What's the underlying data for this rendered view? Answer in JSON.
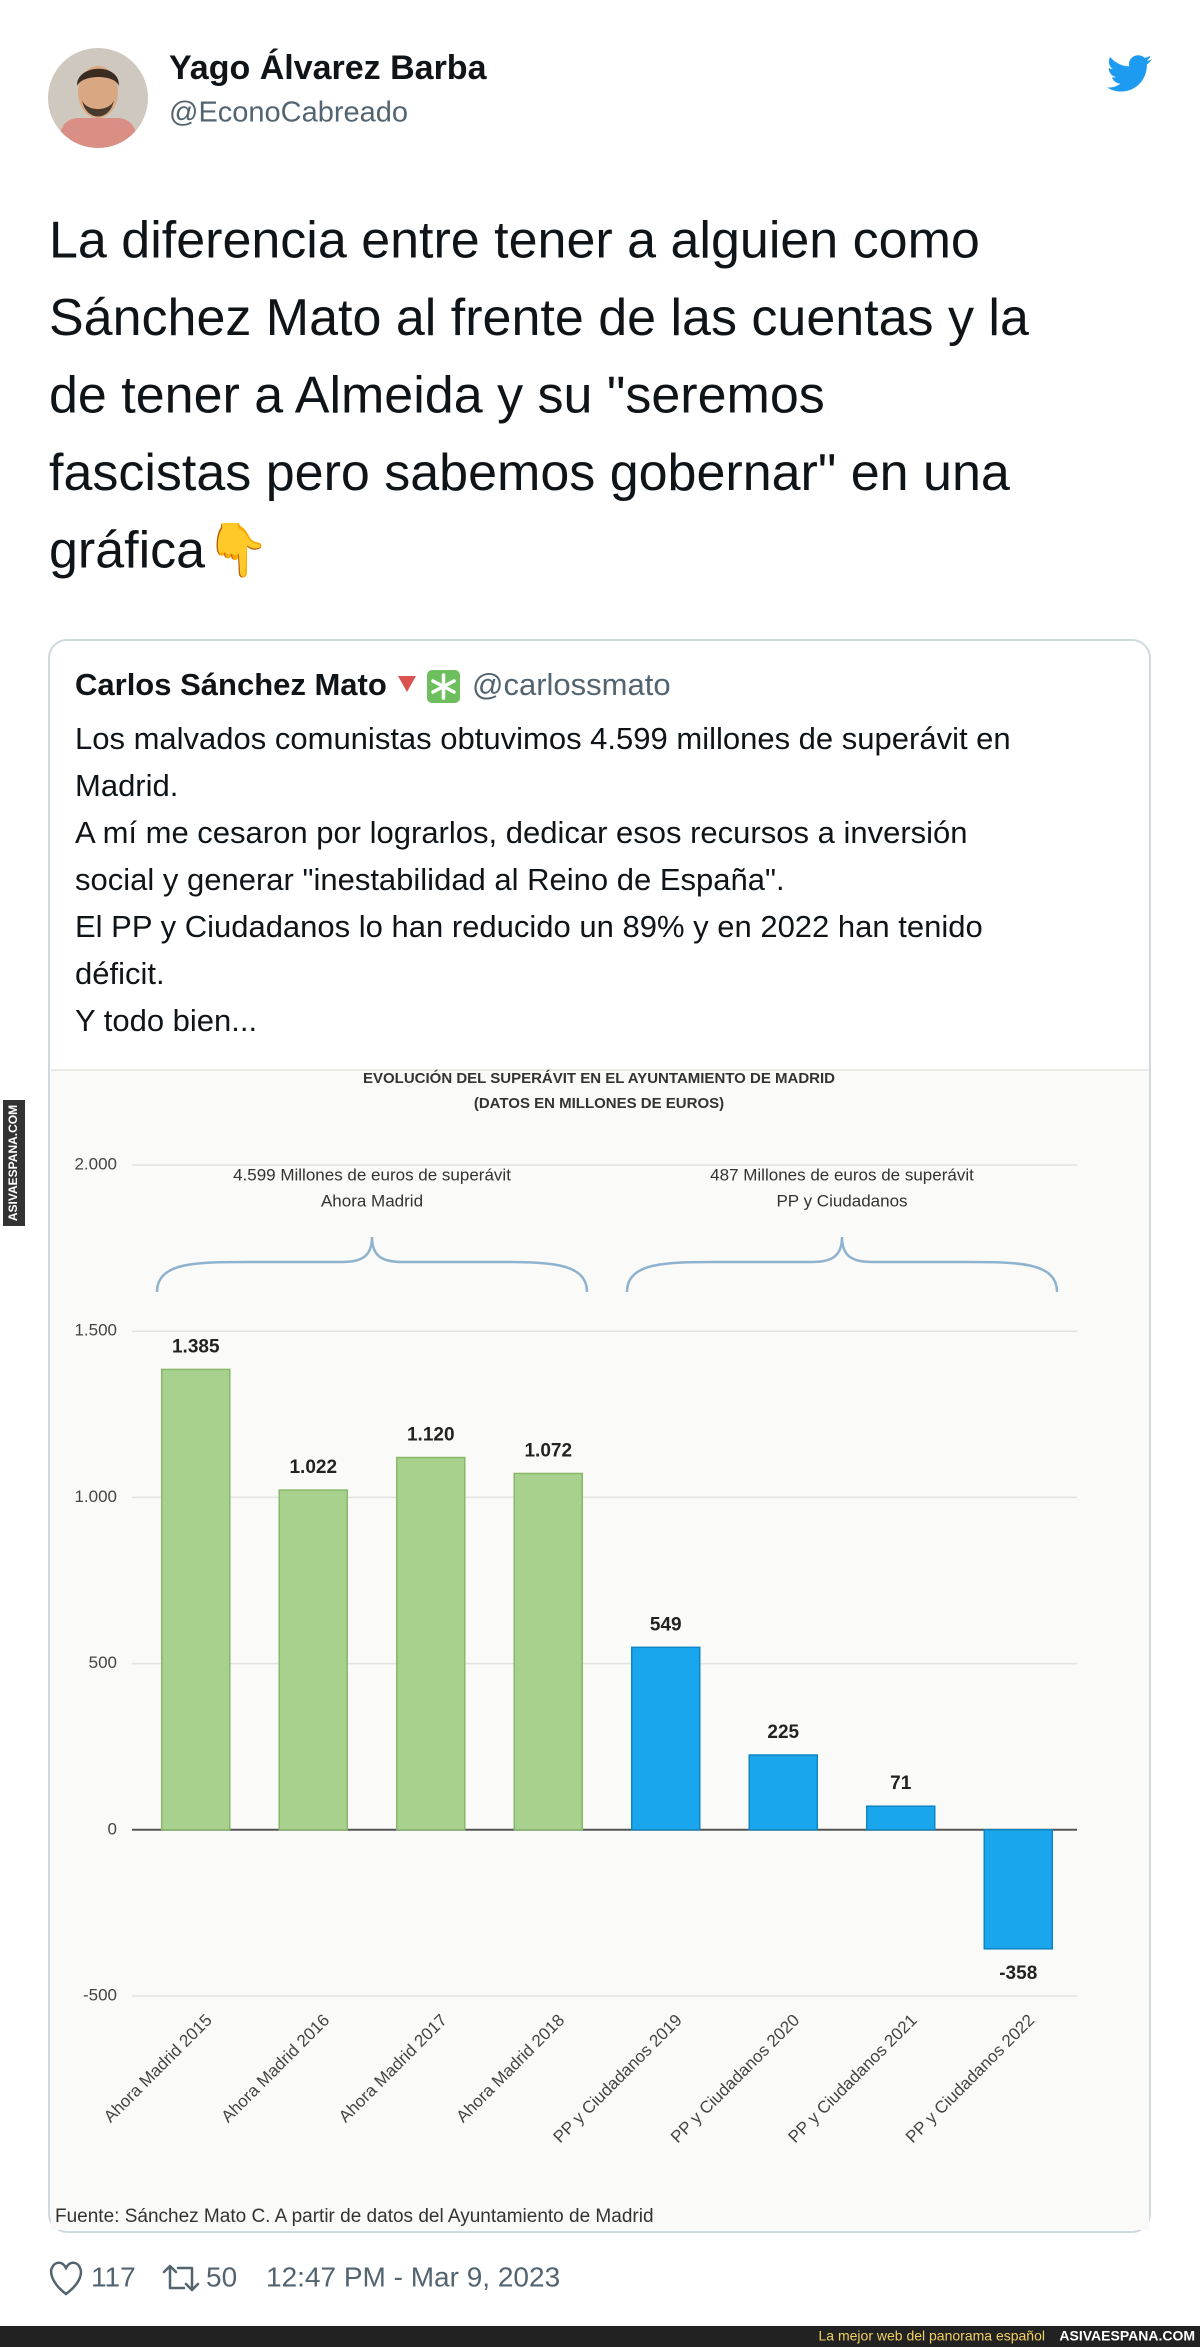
{
  "tweet": {
    "author_name": "Yago Álvarez Barba",
    "handle": "@EconoCabreado",
    "text_lines": [
      "La diferencia entre tener a alguien como",
      "Sánchez Mato al frente de las cuentas y la",
      "de tener a Almeida y su \"seremos",
      "fascistas pero sabemos gobernar\" en una",
      "gráfica👇"
    ]
  },
  "quoted_tweet": {
    "author_name": "Carlos Sánchez Mato",
    "handle": "@carlossmato",
    "text_lines": [
      "Los malvados comunistas obtuvimos 4.599 millones de superávit en",
      "Madrid.",
      "A mí me cesaron por lograrlos, dedicar esos recursos a inversión",
      "social y generar \"inestabilidad al Reino de España\".",
      "El PP y Ciudadanos lo han reducido un 89% y en 2022 han tenido",
      "déficit.",
      "Y todo bien..."
    ]
  },
  "chart_data": {
    "type": "bar",
    "title": "EVOLUCIÓN DEL SUPERÁVIT EN EL AYUNTAMIENTO DE MADRID",
    "subtitle": "(DATOS EN MILLONES DE EUROS)",
    "categories": [
      "Ahora Madrid 2015",
      "Ahora Madrid 2016",
      "Ahora Madrid 2017",
      "Ahora Madrid 2018",
      "PP y Ciudadanos 2019",
      "PP y Ciudadanos 2020",
      "PP y Ciudadanos 2021",
      "PP y Ciudadanos 2022"
    ],
    "values": [
      1385,
      1022,
      1120,
      1072,
      549,
      225,
      71,
      -358
    ],
    "value_labels": [
      "1.385",
      "1.022",
      "1.120",
      "1.072",
      "549",
      "225",
      "71",
      "-358"
    ],
    "colors": [
      "#a9d18e",
      "#a9d18e",
      "#a9d18e",
      "#a9d18e",
      "#19a6ec",
      "#19a6ec",
      "#19a6ec",
      "#19a6ec"
    ],
    "ylim": [
      -500,
      2000
    ],
    "yticks": [
      -500,
      0,
      500,
      {
        "value": 1000,
        "label": "1.000"
      },
      {
        "value": 1500,
        "label": "1.500"
      },
      {
        "value": 2000,
        "label": "2.000"
      }
    ],
    "grid": true,
    "annotations": [
      {
        "lines": [
          "4.599 Millones de euros de superávit",
          "Ahora Madrid"
        ]
      },
      {
        "lines": [
          "487 Millones de euros de superávit",
          "PP y Ciudadanos"
        ]
      }
    ],
    "source": "Fuente: Sánchez Mato C. A partir de datos del Ayuntamiento de Madrid"
  },
  "footer": {
    "likes": 117,
    "retweets": 50,
    "timestamp": "12:47 PM - Mar 9, 2023"
  },
  "watermark": {
    "side_text": "ASIVAESPANA.COM",
    "slogan": "La mejor web del panorama español",
    "site": "ASIVAESPANA.COM"
  }
}
